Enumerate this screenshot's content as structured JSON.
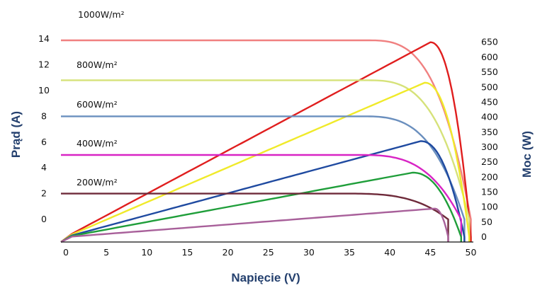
{
  "chart_data": {
    "type": "line",
    "title": "",
    "xlabel": "Napięcie (V)",
    "ylabel_left": "Prąd (A)",
    "ylabel_right": "Moc (W)",
    "xlim": [
      0,
      50
    ],
    "ylim_left": [
      0,
      14
    ],
    "ylim_right": [
      0,
      650
    ],
    "x_ticks": [
      "0",
      "5",
      "10",
      "15",
      "20",
      "25",
      "30",
      "35",
      "40",
      "45",
      "50"
    ],
    "y_ticks_left": [
      "0",
      "2",
      "4",
      "6",
      "8",
      "10",
      "12",
      "14"
    ],
    "y_ticks_right": [
      "0",
      "50",
      "100",
      "150",
      "200",
      "250",
      "300",
      "350",
      "400",
      "450",
      "500",
      "550",
      "600",
      "650"
    ],
    "grid": false,
    "series": [
      {
        "name": "1000W/m²",
        "color": "#f08080",
        "power_color": "#e01e1e",
        "isc": 13.9,
        "voc": 50.0,
        "vmp": 45.0,
        "pmax": 650
      },
      {
        "name": "800W/m²",
        "color": "#d6e27a",
        "power_color": "#f0ea2a",
        "isc": 10.8,
        "voc": 49.8,
        "vmp": 44.3,
        "pmax": 515
      },
      {
        "name": "600W/m²",
        "color": "#6a8fbe",
        "power_color": "#1f4aa0",
        "isc": 8.0,
        "voc": 49.2,
        "vmp": 43.8,
        "pmax": 320
      },
      {
        "name": "400W/m²",
        "color": "#d824c4",
        "power_color": "#1f9e3a",
        "isc": 5.0,
        "voc": 48.8,
        "vmp": 42.8,
        "pmax": 215
      },
      {
        "name": "200W/m²",
        "color": "#6e2a3a",
        "power_color": "#a8609a",
        "isc": 2.0,
        "voc": 47.2,
        "vmp": 45.5,
        "pmax": 95
      }
    ]
  }
}
